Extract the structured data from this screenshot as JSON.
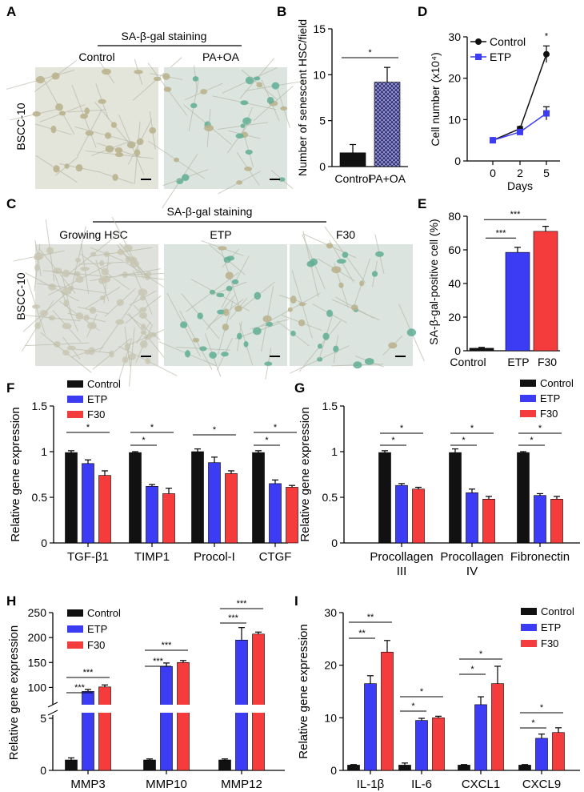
{
  "panel_labels": [
    "A",
    "B",
    "C",
    "D",
    "E",
    "F",
    "G",
    "H",
    "I"
  ],
  "panel_a": {
    "heading": "SA-β-gal staining",
    "columns": [
      "Control",
      "PA+OA"
    ],
    "row_label": "BSCC-10"
  },
  "panel_c": {
    "heading": "SA-β-gal staining",
    "columns": [
      "Growing HSC",
      "ETP",
      "F30"
    ],
    "row_label": "BSCC-10"
  },
  "colors": {
    "control": "#111111",
    "etp": "#3c3cf5",
    "f30": "#f53c3c",
    "micro_bg": "#d9e2dc",
    "stain": "#5fae95",
    "cell": "#b9b08a"
  },
  "chart_data": [
    {
      "id": "B",
      "type": "bar",
      "categories": [
        "Control",
        "PA+OA"
      ],
      "values": [
        1.5,
        9.2
      ],
      "errors": [
        0.9,
        1.6
      ],
      "ylabel": "Number of senescent HSC/field",
      "ylim": [
        0,
        15
      ],
      "yticks": [
        0,
        5,
        10,
        15
      ],
      "significance": [
        {
          "pair": [
            0,
            1
          ],
          "label": "*"
        }
      ]
    },
    {
      "id": "D",
      "type": "line",
      "x": [
        0,
        2,
        5
      ],
      "xticks": [
        "0",
        "2",
        "5"
      ],
      "xlabel": "Days",
      "ylabel": "Cell number (x10⁴)",
      "ylim": [
        0,
        30
      ],
      "yticks": [
        0,
        10,
        20,
        30
      ],
      "series": [
        {
          "name": "Control",
          "values": [
            5.0,
            7.8,
            25.8
          ],
          "errors": [
            0.3,
            0.5,
            2.0
          ]
        },
        {
          "name": "ETP",
          "values": [
            5.0,
            7.0,
            11.5
          ],
          "errors": [
            0.3,
            0.4,
            1.6
          ]
        }
      ],
      "annotations": [
        {
          "x": 5,
          "label": "*"
        }
      ]
    },
    {
      "id": "E",
      "type": "bar",
      "categories": [
        "Control",
        "ETP",
        "F30"
      ],
      "values": [
        1.5,
        58.5,
        71.0
      ],
      "errors": [
        0.5,
        3.0,
        3.0
      ],
      "ylabel": "SA-β-gal-positive cell (%)",
      "ylim": [
        0,
        80
      ],
      "yticks": [
        0,
        20,
        40,
        60,
        80
      ],
      "significance": [
        {
          "pair": [
            0,
            1
          ],
          "label": "***"
        },
        {
          "pair": [
            0,
            2
          ],
          "label": "***"
        }
      ]
    },
    {
      "id": "F",
      "type": "bar",
      "categories": [
        "TGF-β1",
        "TIMP1",
        "Procol-I",
        "CTGF"
      ],
      "ylabel": "Relative gene expression",
      "ylim": [
        0,
        1.5
      ],
      "yticks": [
        0,
        0.5,
        1,
        1.5
      ],
      "ytick_labels": [
        "0",
        "0.5",
        "1",
        "1.5"
      ],
      "series": [
        {
          "name": "Control",
          "values": [
            0.99,
            0.99,
            1.0,
            0.99
          ],
          "errors": [
            0.02,
            0.01,
            0.03,
            0.02
          ]
        },
        {
          "name": "ETP",
          "values": [
            0.87,
            0.62,
            0.88,
            0.65
          ],
          "errors": [
            0.04,
            0.02,
            0.06,
            0.04
          ]
        },
        {
          "name": "F30",
          "values": [
            0.74,
            0.54,
            0.76,
            0.61
          ],
          "errors": [
            0.05,
            0.06,
            0.03,
            0.02
          ]
        }
      ],
      "significance": [
        {
          "group": 0,
          "pair": [
            0,
            2
          ],
          "label": "*"
        },
        {
          "group": 1,
          "pair": [
            0,
            1
          ],
          "label": "*"
        },
        {
          "group": 1,
          "pair": [
            0,
            2
          ],
          "label": "*"
        },
        {
          "group": 2,
          "pair": [
            0,
            2
          ],
          "label": "*"
        },
        {
          "group": 3,
          "pair": [
            0,
            1
          ],
          "label": "*"
        },
        {
          "group": 3,
          "pair": [
            0,
            2
          ],
          "label": "*"
        }
      ]
    },
    {
      "id": "G",
      "type": "bar",
      "categories": [
        "Procollagen III",
        "Procollagen IV",
        "Fibronectin"
      ],
      "category_lines": [
        [
          "Procollagen",
          "III"
        ],
        [
          "Procollagen",
          "IV"
        ],
        [
          "Fibronectin"
        ]
      ],
      "ylabel": "Relative gene expression",
      "ylim": [
        0,
        1.5
      ],
      "yticks": [
        0,
        0.5,
        1,
        1.5
      ],
      "ytick_labels": [
        "0",
        "0.5",
        "1",
        "1.5"
      ],
      "series": [
        {
          "name": "Control",
          "values": [
            0.99,
            0.99,
            0.99
          ],
          "errors": [
            0.02,
            0.04,
            0.01
          ]
        },
        {
          "name": "ETP",
          "values": [
            0.63,
            0.55,
            0.52
          ],
          "errors": [
            0.02,
            0.04,
            0.02
          ]
        },
        {
          "name": "F30",
          "values": [
            0.59,
            0.48,
            0.48
          ],
          "errors": [
            0.02,
            0.03,
            0.03
          ]
        }
      ],
      "significance": [
        {
          "group": 0,
          "pair": [
            0,
            1
          ],
          "label": "*"
        },
        {
          "group": 0,
          "pair": [
            0,
            2
          ],
          "label": "*"
        },
        {
          "group": 1,
          "pair": [
            0,
            1
          ],
          "label": "*"
        },
        {
          "group": 1,
          "pair": [
            0,
            2
          ],
          "label": "*"
        },
        {
          "group": 2,
          "pair": [
            0,
            1
          ],
          "label": "*"
        },
        {
          "group": 2,
          "pair": [
            0,
            2
          ],
          "label": "*"
        }
      ]
    },
    {
      "id": "H",
      "type": "bar",
      "categories": [
        "MMP3",
        "MMP10",
        "MMP12"
      ],
      "ylabel": "Relative gene expression",
      "axis_break": {
        "lower": [
          0,
          5
        ],
        "upper": [
          75,
          250
        ]
      },
      "yticks_lower": [
        0,
        5
      ],
      "yticks_upper": [
        100,
        150,
        200,
        250
      ],
      "series": [
        {
          "name": "Control",
          "values": [
            1.0,
            1.0,
            1.0
          ],
          "errors": [
            0.2,
            0.1,
            0.1
          ]
        },
        {
          "name": "ETP",
          "values": [
            92,
            142,
            195
          ],
          "errors": [
            4,
            7,
            25
          ]
        },
        {
          "name": "F30",
          "values": [
            101,
            150,
            207
          ],
          "errors": [
            4,
            4,
            4
          ]
        }
      ],
      "significance": [
        {
          "group": 0,
          "pair": [
            0,
            1
          ],
          "label": "***"
        },
        {
          "group": 0,
          "pair": [
            0,
            2
          ],
          "label": "***"
        },
        {
          "group": 1,
          "pair": [
            0,
            1
          ],
          "label": "***"
        },
        {
          "group": 1,
          "pair": [
            0,
            2
          ],
          "label": "***"
        },
        {
          "group": 2,
          "pair": [
            0,
            1
          ],
          "label": "***"
        },
        {
          "group": 2,
          "pair": [
            0,
            2
          ],
          "label": "***"
        }
      ]
    },
    {
      "id": "I",
      "type": "bar",
      "categories": [
        "IL-1β",
        "IL-6",
        "CXCL1",
        "CXCL9"
      ],
      "ylabel": "Relative gene expression",
      "ylim": [
        0,
        30
      ],
      "yticks": [
        0,
        10,
        20,
        30
      ],
      "series": [
        {
          "name": "Control",
          "values": [
            1.0,
            1.0,
            1.0,
            1.0
          ],
          "errors": [
            0.1,
            0.4,
            0.1,
            0.1
          ]
        },
        {
          "name": "ETP",
          "values": [
            16.5,
            9.5,
            12.5,
            6.1
          ],
          "errors": [
            1.5,
            0.4,
            1.5,
            0.8
          ]
        },
        {
          "name": "F30",
          "values": [
            22.5,
            10.0,
            16.5,
            7.2
          ],
          "errors": [
            2.2,
            0.3,
            3.3,
            0.9
          ]
        }
      ],
      "significance": [
        {
          "group": 0,
          "pair": [
            0,
            1
          ],
          "label": "**"
        },
        {
          "group": 0,
          "pair": [
            0,
            2
          ],
          "label": "**"
        },
        {
          "group": 1,
          "pair": [
            0,
            1
          ],
          "label": "*"
        },
        {
          "group": 1,
          "pair": [
            0,
            2
          ],
          "label": "*"
        },
        {
          "group": 2,
          "pair": [
            0,
            1
          ],
          "label": "*"
        },
        {
          "group": 2,
          "pair": [
            0,
            2
          ],
          "label": "*"
        },
        {
          "group": 3,
          "pair": [
            0,
            1
          ],
          "label": "*"
        },
        {
          "group": 3,
          "pair": [
            0,
            2
          ],
          "label": "*"
        }
      ]
    }
  ]
}
